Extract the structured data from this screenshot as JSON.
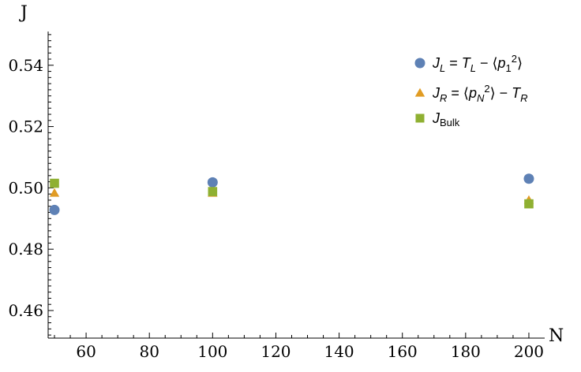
{
  "chart_data": {
    "type": "scatter",
    "xlabel": "N",
    "ylabel": "J",
    "xlim": [
      48,
      205
    ],
    "ylim": [
      0.451,
      0.551
    ],
    "x_ticks": [
      60,
      80,
      100,
      120,
      140,
      160,
      180,
      200
    ],
    "x_tick_labels": [
      "60",
      "80",
      "100",
      "120",
      "140",
      "160",
      "180",
      "200"
    ],
    "y_ticks": [
      0.46,
      0.48,
      0.5,
      0.52,
      0.54
    ],
    "y_tick_labels": [
      "0.46",
      "0.48",
      "0.50",
      "0.52",
      "0.54"
    ],
    "legend_position": "top-right",
    "grid": false,
    "series": [
      {
        "name": "J_L = T_L − ⟨p_1^2⟩",
        "legend": {
          "main": "J",
          "sub": "L",
          "rest": " = T",
          "sub2": "L",
          "rest2": " − ⟨p",
          "sub3": "1",
          "sup": "2",
          "rest3": "⟩"
        },
        "marker": "circle",
        "color": "#5E81B5",
        "points": [
          [
            50,
            0.4928
          ],
          [
            100,
            0.5018
          ],
          [
            200,
            0.503
          ]
        ]
      },
      {
        "name": "J_R = ⟨p_N^2⟩ − T_R",
        "legend": {
          "main": "J",
          "sub": "R",
          "rest": " = ⟨p",
          "sub2": "N",
          "sup": "2",
          "rest2": "⟩ − T",
          "sub3": "R"
        },
        "marker": "triangle",
        "color": "#E19C24",
        "points": [
          [
            50,
            0.4983
          ],
          [
            100,
            0.4983
          ],
          [
            200,
            0.496
          ]
        ]
      },
      {
        "name": "J_Bulk",
        "legend": {
          "main": "J",
          "sub": "Bulk"
        },
        "marker": "square",
        "color": "#8FB032",
        "points": [
          [
            50,
            0.5015
          ],
          [
            100,
            0.4988
          ],
          [
            200,
            0.4948
          ]
        ]
      }
    ]
  }
}
